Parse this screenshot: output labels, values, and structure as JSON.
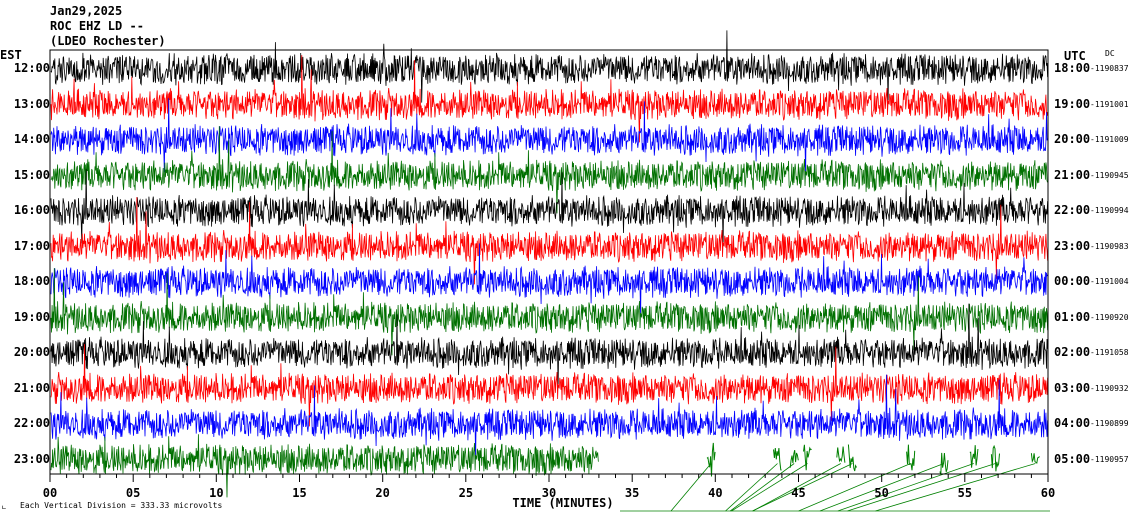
{
  "header": {
    "date": "Jan29,2025",
    "station": "ROC EHZ LD --",
    "network": "(LDEO Rochester)"
  },
  "timezones": {
    "left": "EST",
    "right": "UTC",
    "dc": "DC"
  },
  "footer": {
    "scale": "Each Vertical Division =  333.33 microvolts"
  },
  "colors": {
    "trace_cycle": [
      "#000000",
      "#ff0000",
      "#0000ff",
      "#007000"
    ],
    "trace_middle": "#ffffff",
    "axis": "#000000",
    "event_line": "#008000"
  },
  "chart_data": {
    "type": "line",
    "title": "",
    "xlabel": "TIME (MINUTES)",
    "ylabel": "",
    "xlim": [
      0,
      60
    ],
    "x_ticks": [
      "00",
      "05",
      "10",
      "15",
      "20",
      "25",
      "30",
      "35",
      "40",
      "45",
      "50",
      "55",
      "60"
    ],
    "rows": [
      {
        "est": "12:00",
        "utc": "18:00",
        "count": "-1190837",
        "color": "black",
        "end_minute": 60
      },
      {
        "est": "13:00",
        "utc": "19:00",
        "count": "-1191001",
        "color": "red",
        "end_minute": 60
      },
      {
        "est": "14:00",
        "utc": "20:00",
        "count": "-1191009",
        "color": "blue",
        "end_minute": 60
      },
      {
        "est": "15:00",
        "utc": "21:00",
        "count": "-1190945",
        "color": "green",
        "end_minute": 60
      },
      {
        "est": "16:00",
        "utc": "22:00",
        "count": "-1190994",
        "color": "black",
        "end_minute": 60
      },
      {
        "est": "17:00",
        "utc": "23:00",
        "count": "-1190983",
        "color": "red",
        "end_minute": 60
      },
      {
        "est": "18:00",
        "utc": "00:00",
        "count": "-1191004",
        "color": "blue",
        "end_minute": 60
      },
      {
        "est": "19:00",
        "utc": "01:00",
        "count": "-1190920",
        "color": "green",
        "end_minute": 60
      },
      {
        "est": "20:00",
        "utc": "02:00",
        "count": "-1191058",
        "color": "black",
        "end_minute": 60
      },
      {
        "est": "21:00",
        "utc": "03:00",
        "count": "-1190932",
        "color": "red",
        "end_minute": 60
      },
      {
        "est": "22:00",
        "utc": "04:00",
        "count": "-1190899",
        "color": "blue",
        "end_minute": 60
      },
      {
        "est": "23:00",
        "utc": "05:00",
        "count": "-1190957",
        "color": "green",
        "end_minute": 33
      }
    ],
    "grid": false
  }
}
